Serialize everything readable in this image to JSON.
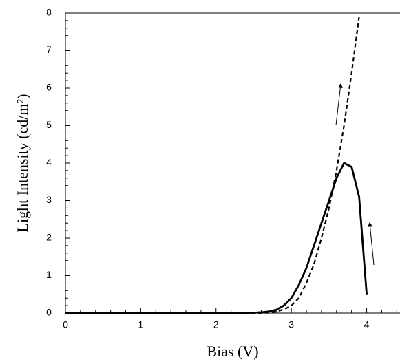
{
  "chart_data": {
    "type": "line",
    "xlabel": "Bias (V)",
    "ylabel": "Light Intensity (cd/m²)",
    "xlim": [
      0,
      4.42
    ],
    "ylim": [
      0,
      8
    ],
    "xticks": [
      0,
      1,
      2,
      3,
      4
    ],
    "yticks": [
      0,
      1,
      2,
      3,
      4,
      5,
      6,
      7,
      8
    ],
    "series": [
      {
        "color": "#000000",
        "dash": "solid",
        "x": [
          0,
          0.5,
          1,
          1.5,
          2,
          2.5,
          2.6,
          2.7,
          2.8,
          2.9,
          3.0,
          3.1,
          3.2,
          3.3,
          3.4,
          3.5,
          3.6,
          3.7,
          3.8,
          3.9,
          4.0
        ],
        "values": [
          0,
          0,
          0,
          0,
          0,
          0.01,
          0.02,
          0.04,
          0.09,
          0.2,
          0.4,
          0.75,
          1.2,
          1.8,
          2.4,
          3.0,
          3.6,
          4.0,
          3.9,
          3.1,
          0.5
        ]
      },
      {
        "color": "#000000",
        "dash": "dashed",
        "x": [
          0,
          0.5,
          1,
          1.5,
          2,
          2.5,
          2.7,
          2.8,
          2.9,
          3.0,
          3.1,
          3.2,
          3.3,
          3.4,
          3.5,
          3.6,
          3.7,
          3.8,
          3.9
        ],
        "values": [
          0,
          0,
          0,
          0,
          0,
          0,
          0.01,
          0.04,
          0.1,
          0.2,
          0.4,
          0.8,
          1.3,
          2.0,
          2.8,
          3.8,
          5.0,
          6.4,
          7.9
        ]
      }
    ]
  }
}
